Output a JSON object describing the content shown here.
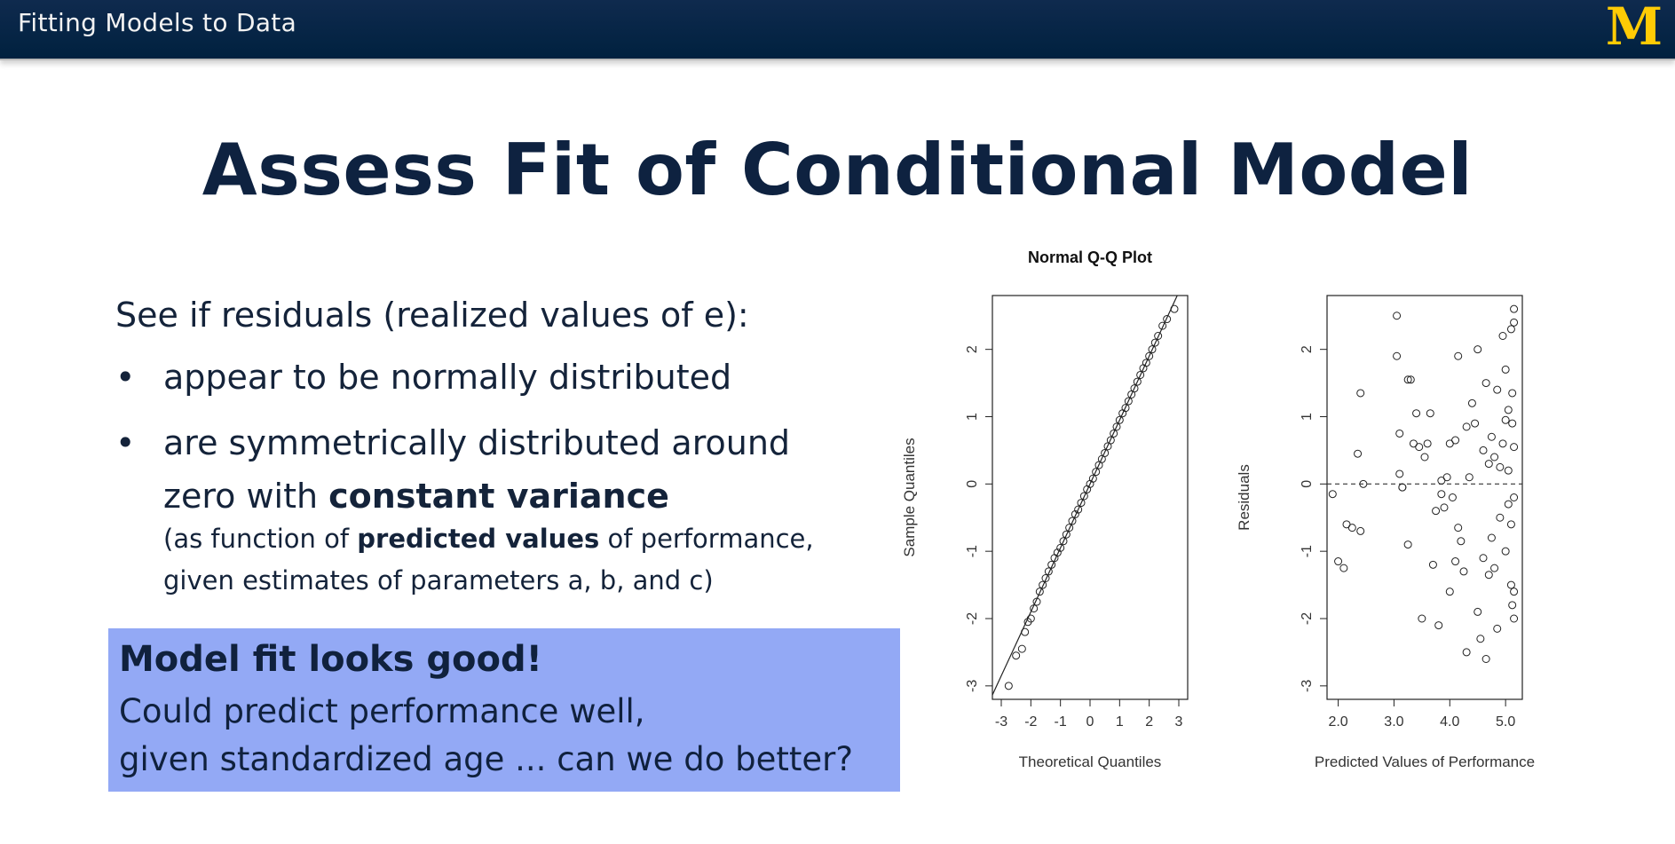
{
  "header": {
    "title": "Fitting Models to Data",
    "logo_letter": "M",
    "logo_color": "#ffcb05"
  },
  "slide": {
    "title": "Assess Fit of Conditional Model",
    "lead": "See if residuals (realized values of e):",
    "bullet_char": "•",
    "bullets": [
      {
        "text": "appear to be normally distributed"
      },
      {
        "line1": "are symmetrically distributed around",
        "line2_pre": "zero with ",
        "line2_bold": "constant variance",
        "line3_pre": "(as function of ",
        "line3_bold": "predicted values",
        "line3_post": " of performance,",
        "line4": "given estimates of parameters a, b, and c)"
      }
    ],
    "callout": {
      "heading": "Model fit looks good!",
      "line1": "Could predict performance well,",
      "line2": "given standardized age ... can we do better?",
      "background": "#93a9f5"
    }
  },
  "chart_data": [
    {
      "type": "scatter",
      "title": "Normal Q-Q Plot",
      "xlabel": "Theoretical Quantiles",
      "ylabel": "Sample Quantiles",
      "xlim": [
        -3.3,
        3.3
      ],
      "ylim": [
        -3.2,
        2.8
      ],
      "xticks": [
        -3,
        -2,
        -1,
        0,
        1,
        2,
        3
      ],
      "yticks": [
        -3,
        -2,
        -1,
        0,
        1,
        2
      ],
      "grid": false,
      "reference_line": {
        "type": "line",
        "slope": 0.95,
        "intercept": 0
      },
      "points": {
        "x": [
          -2.75,
          -2.5,
          -2.3,
          -2.2,
          -2.1,
          -2.0,
          -1.9,
          -1.8,
          -1.7,
          -1.6,
          -1.5,
          -1.4,
          -1.3,
          -1.2,
          -1.1,
          -1.0,
          -0.9,
          -0.8,
          -0.7,
          -0.6,
          -0.5,
          -0.4,
          -0.3,
          -0.2,
          -0.1,
          0.0,
          0.1,
          0.2,
          0.3,
          0.4,
          0.5,
          0.6,
          0.7,
          0.8,
          0.9,
          1.0,
          1.1,
          1.2,
          1.3,
          1.4,
          1.5,
          1.6,
          1.7,
          1.8,
          1.9,
          2.0,
          2.1,
          2.2,
          2.3,
          2.45,
          2.6,
          2.85
        ],
        "y": [
          -3.0,
          -2.55,
          -2.45,
          -2.2,
          -2.05,
          -2.0,
          -1.85,
          -1.75,
          -1.6,
          -1.5,
          -1.4,
          -1.3,
          -1.2,
          -1.1,
          -1.02,
          -0.95,
          -0.85,
          -0.75,
          -0.65,
          -0.55,
          -0.45,
          -0.38,
          -0.28,
          -0.18,
          -0.08,
          0.0,
          0.08,
          0.18,
          0.28,
          0.37,
          0.46,
          0.56,
          0.65,
          0.75,
          0.85,
          0.95,
          1.05,
          1.13,
          1.23,
          1.33,
          1.42,
          1.52,
          1.62,
          1.72,
          1.8,
          1.9,
          2.0,
          2.1,
          2.2,
          2.35,
          2.45,
          2.6
        ]
      }
    },
    {
      "type": "scatter",
      "title": "",
      "xlabel": "Predicted Values of Performance",
      "ylabel": "Residuals",
      "xlim": [
        1.8,
        5.3
      ],
      "ylim": [
        -3.2,
        2.8
      ],
      "xticks": [
        2.0,
        3.0,
        4.0,
        5.0
      ],
      "xtick_labels": [
        "2.0",
        "3.0",
        "4.0",
        "5.0"
      ],
      "yticks": [
        -3,
        -2,
        -1,
        0,
        1,
        2
      ],
      "grid": false,
      "reference_line": {
        "type": "hline",
        "y": 0,
        "style": "dashed"
      },
      "points": {
        "x": [
          1.9,
          2.0,
          2.1,
          2.15,
          2.25,
          2.35,
          2.4,
          2.4,
          2.45,
          3.05,
          3.05,
          3.1,
          3.1,
          3.15,
          3.15,
          3.25,
          3.25,
          3.3,
          3.35,
          3.4,
          3.45,
          3.5,
          3.55,
          3.6,
          3.65,
          3.7,
          3.75,
          3.8,
          3.85,
          3.85,
          3.9,
          3.95,
          4.0,
          4.0,
          4.05,
          4.1,
          4.1,
          4.15,
          4.15,
          4.2,
          4.25,
          4.3,
          4.3,
          4.35,
          4.4,
          4.45,
          4.5,
          4.5,
          4.55,
          4.6,
          4.6,
          4.65,
          4.65,
          4.7,
          4.7,
          4.75,
          4.75,
          4.8,
          4.8,
          4.85,
          4.85,
          4.9,
          4.9,
          4.95,
          4.95,
          5.0,
          5.0,
          5.0,
          5.05,
          5.05,
          5.05,
          5.1,
          5.1,
          5.1,
          5.12,
          5.12,
          5.12,
          5.15,
          5.15,
          5.15,
          5.15,
          5.15,
          5.15
        ],
        "y": [
          -0.15,
          -1.15,
          -1.25,
          -0.6,
          -0.65,
          0.45,
          1.35,
          -0.7,
          0.0,
          2.5,
          1.9,
          0.75,
          0.15,
          -0.05,
          -0.05,
          -0.9,
          1.55,
          1.55,
          0.6,
          1.05,
          0.55,
          -2.0,
          0.4,
          0.6,
          1.05,
          -1.2,
          -0.4,
          -2.1,
          0.05,
          -0.15,
          -0.35,
          0.1,
          0.6,
          -1.6,
          -0.2,
          0.65,
          -1.15,
          -0.65,
          1.9,
          -0.85,
          -1.3,
          -2.5,
          0.85,
          0.1,
          1.2,
          0.9,
          -1.9,
          2.0,
          -2.3,
          -1.1,
          0.5,
          -2.6,
          1.5,
          0.3,
          -1.35,
          0.7,
          -0.8,
          0.4,
          -1.25,
          -2.15,
          1.4,
          0.25,
          -0.5,
          2.2,
          0.6,
          1.7,
          -1.0,
          0.95,
          1.1,
          0.2,
          -0.3,
          2.3,
          -1.5,
          -0.6,
          0.9,
          -1.8,
          1.35,
          2.6,
          2.4,
          -0.2,
          -2.0,
          -1.6,
          0.55
        ]
      }
    }
  ]
}
